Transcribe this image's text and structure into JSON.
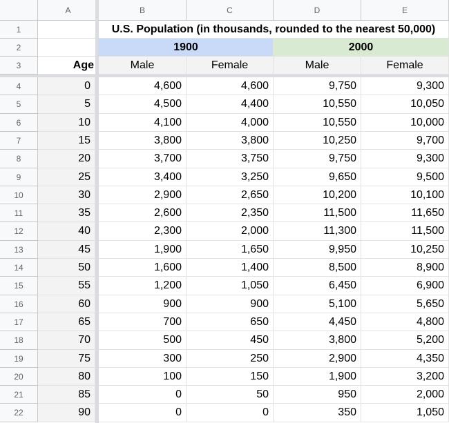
{
  "columns": [
    "A",
    "B",
    "C",
    "D",
    "E"
  ],
  "title": "U.S. Population (in thousands, rounded to the nearest 50,000)",
  "year1900": "1900",
  "year2000": "2000",
  "age_label": "Age",
  "sub_labels": [
    "Male",
    "Female",
    "Male",
    "Female"
  ],
  "colors": {
    "year1900_fill": "#c9daf8",
    "year2000_fill": "#d9ead3",
    "age_fill": "#f3f3f3",
    "frozen_line": "#dadce0"
  },
  "rows": [
    {
      "num": "4",
      "age": "0",
      "m1900": "4,600",
      "f1900": "4,600",
      "m2000": "9,750",
      "f2000": "9,300"
    },
    {
      "num": "5",
      "age": "5",
      "m1900": "4,500",
      "f1900": "4,400",
      "m2000": "10,550",
      "f2000": "10,050"
    },
    {
      "num": "6",
      "age": "10",
      "m1900": "4,100",
      "f1900": "4,000",
      "m2000": "10,550",
      "f2000": "10,000"
    },
    {
      "num": "7",
      "age": "15",
      "m1900": "3,800",
      "f1900": "3,800",
      "m2000": "10,250",
      "f2000": "9,700"
    },
    {
      "num": "8",
      "age": "20",
      "m1900": "3,700",
      "f1900": "3,750",
      "m2000": "9,750",
      "f2000": "9,300"
    },
    {
      "num": "9",
      "age": "25",
      "m1900": "3,400",
      "f1900": "3,250",
      "m2000": "9,650",
      "f2000": "9,500"
    },
    {
      "num": "10",
      "age": "30",
      "m1900": "2,900",
      "f1900": "2,650",
      "m2000": "10,200",
      "f2000": "10,100"
    },
    {
      "num": "11",
      "age": "35",
      "m1900": "2,600",
      "f1900": "2,350",
      "m2000": "11,500",
      "f2000": "11,650"
    },
    {
      "num": "12",
      "age": "40",
      "m1900": "2,300",
      "f1900": "2,000",
      "m2000": "11,300",
      "f2000": "11,500"
    },
    {
      "num": "13",
      "age": "45",
      "m1900": "1,900",
      "f1900": "1,650",
      "m2000": "9,950",
      "f2000": "10,250"
    },
    {
      "num": "14",
      "age": "50",
      "m1900": "1,600",
      "f1900": "1,400",
      "m2000": "8,500",
      "f2000": "8,900"
    },
    {
      "num": "15",
      "age": "55",
      "m1900": "1,200",
      "f1900": "1,050",
      "m2000": "6,450",
      "f2000": "6,900"
    },
    {
      "num": "16",
      "age": "60",
      "m1900": "900",
      "f1900": "900",
      "m2000": "5,100",
      "f2000": "5,650"
    },
    {
      "num": "17",
      "age": "65",
      "m1900": "700",
      "f1900": "650",
      "m2000": "4,450",
      "f2000": "4,800"
    },
    {
      "num": "18",
      "age": "70",
      "m1900": "500",
      "f1900": "450",
      "m2000": "3,800",
      "f2000": "5,200"
    },
    {
      "num": "19",
      "age": "75",
      "m1900": "300",
      "f1900": "250",
      "m2000": "2,900",
      "f2000": "4,350"
    },
    {
      "num": "20",
      "age": "80",
      "m1900": "100",
      "f1900": "150",
      "m2000": "1,900",
      "f2000": "3,200"
    },
    {
      "num": "21",
      "age": "85",
      "m1900": "0",
      "f1900": "50",
      "m2000": "950",
      "f2000": "2,000"
    },
    {
      "num": "22",
      "age": "90",
      "m1900": "0",
      "f1900": "0",
      "m2000": "350",
      "f2000": "1,050"
    }
  ]
}
